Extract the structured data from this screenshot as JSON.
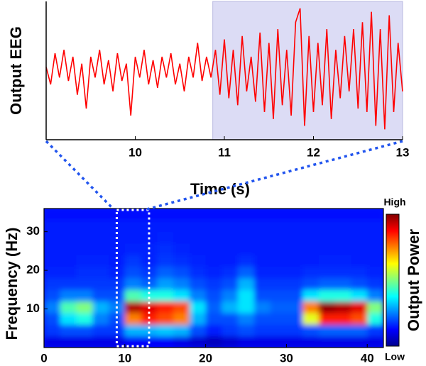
{
  "chart_data": [
    {
      "type": "line",
      "y_label": "Output EEG",
      "x_label": "Time (s)",
      "color": "#ff0000",
      "highlight_x": [
        10.87,
        13
      ],
      "highlight_color": "#dcdcf5",
      "xlim": [
        9,
        13
      ],
      "ylim": [
        -1,
        1
      ],
      "xticks": [
        10,
        11,
        12,
        13
      ],
      "x": [
        9.0,
        9.05,
        9.1,
        9.15,
        9.2,
        9.25,
        9.3,
        9.35,
        9.4,
        9.45,
        9.5,
        9.55,
        9.6,
        9.65,
        9.7,
        9.75,
        9.8,
        9.85,
        9.9,
        9.95,
        10.0,
        10.05,
        10.1,
        10.15,
        10.2,
        10.25,
        10.3,
        10.35,
        10.4,
        10.45,
        10.5,
        10.55,
        10.6,
        10.65,
        10.7,
        10.75,
        10.8,
        10.85,
        10.9,
        10.95,
        11.0,
        11.05,
        11.1,
        11.15,
        11.2,
        11.25,
        11.3,
        11.35,
        11.4,
        11.45,
        11.5,
        11.55,
        11.6,
        11.65,
        11.7,
        11.75,
        11.8,
        11.85,
        11.9,
        11.95,
        12.0,
        12.05,
        12.1,
        12.15,
        12.2,
        12.25,
        12.3,
        12.35,
        12.4,
        12.45,
        12.5,
        12.55,
        12.6,
        12.65,
        12.7,
        12.75,
        12.8,
        12.85,
        12.9,
        12.95,
        13.0
      ],
      "values": [
        0.05,
        -0.2,
        0.25,
        -0.1,
        0.3,
        -0.15,
        0.2,
        -0.35,
        0.1,
        -0.55,
        0.2,
        -0.1,
        0.3,
        -0.2,
        0.15,
        -0.3,
        0.25,
        -0.15,
        0.1,
        -0.65,
        0.2,
        -0.1,
        0.3,
        -0.2,
        0.15,
        -0.25,
        0.2,
        -0.1,
        0.25,
        -0.2,
        0.1,
        -0.3,
        0.2,
        -0.1,
        0.4,
        -0.15,
        0.2,
        -0.1,
        0.3,
        -0.35,
        0.45,
        -0.4,
        0.3,
        -0.5,
        0.5,
        -0.3,
        0.2,
        -0.45,
        0.55,
        -0.6,
        0.4,
        -0.7,
        0.6,
        -0.5,
        0.3,
        -0.65,
        0.7,
        0.9,
        -0.8,
        0.5,
        -0.6,
        0.4,
        -0.5,
        0.6,
        -0.7,
        0.3,
        -0.4,
        0.5,
        -0.3,
        0.6,
        -0.55,
        0.7,
        -0.6,
        0.85,
        -0.8,
        0.6,
        -0.85,
        0.8,
        -0.6,
        0.4,
        -0.3
      ]
    },
    {
      "type": "heatmap",
      "y_label": "Frequency (Hz)",
      "colormap": "jet",
      "box_x": [
        9,
        13
      ],
      "box_color": "#ffffff",
      "colorbar": {
        "label": "Output Power",
        "high": "High",
        "low": "Low"
      },
      "xlim": [
        0,
        42
      ],
      "ylim": [
        0,
        36
      ],
      "xticks": [
        0,
        10,
        20,
        30,
        40
      ],
      "yticks": [
        10,
        20,
        30
      ],
      "xbins": [
        0,
        2,
        4,
        6,
        8,
        10,
        12,
        14,
        16,
        18,
        20,
        22,
        24,
        26,
        28,
        30,
        32,
        34,
        36,
        38,
        40,
        42
      ],
      "ybins": [
        0,
        3,
        6,
        9,
        12,
        15,
        18,
        21,
        24,
        27,
        30,
        33,
        36
      ],
      "values": [
        [
          0.1,
          0.1,
          0.1,
          0.1,
          0.1,
          0.12,
          0.12,
          0.12,
          0.1,
          0.08,
          0.06,
          0.08,
          0.1,
          0.1,
          0.1,
          0.1,
          0.1,
          0.1,
          0.1,
          0.1,
          0.1
        ],
        [
          0.18,
          0.2,
          0.2,
          0.18,
          0.18,
          0.3,
          0.3,
          0.32,
          0.3,
          0.2,
          0.15,
          0.18,
          0.2,
          0.18,
          0.18,
          0.18,
          0.2,
          0.22,
          0.22,
          0.22,
          0.18
        ],
        [
          0.2,
          0.35,
          0.4,
          0.25,
          0.2,
          0.75,
          0.85,
          0.8,
          0.75,
          0.3,
          0.2,
          0.2,
          0.25,
          0.2,
          0.2,
          0.2,
          0.6,
          0.85,
          0.85,
          0.8,
          0.4
        ],
        [
          0.25,
          0.45,
          0.5,
          0.3,
          0.25,
          0.95,
          0.9,
          0.85,
          0.8,
          0.35,
          0.22,
          0.3,
          0.35,
          0.25,
          0.22,
          0.22,
          0.75,
          0.98,
          0.95,
          0.9,
          0.5
        ],
        [
          0.2,
          0.25,
          0.25,
          0.2,
          0.2,
          0.45,
          0.4,
          0.4,
          0.35,
          0.25,
          0.2,
          0.25,
          0.35,
          0.2,
          0.2,
          0.2,
          0.35,
          0.4,
          0.4,
          0.35,
          0.25
        ],
        [
          0.18,
          0.18,
          0.18,
          0.18,
          0.18,
          0.25,
          0.22,
          0.28,
          0.25,
          0.2,
          0.18,
          0.2,
          0.3,
          0.18,
          0.18,
          0.18,
          0.2,
          0.22,
          0.22,
          0.2,
          0.18
        ],
        [
          0.16,
          0.16,
          0.17,
          0.17,
          0.16,
          0.2,
          0.18,
          0.22,
          0.2,
          0.17,
          0.16,
          0.17,
          0.22,
          0.16,
          0.16,
          0.16,
          0.17,
          0.17,
          0.17,
          0.17,
          0.16
        ],
        [
          0.15,
          0.15,
          0.16,
          0.16,
          0.15,
          0.18,
          0.16,
          0.18,
          0.17,
          0.16,
          0.15,
          0.15,
          0.17,
          0.15,
          0.15,
          0.15,
          0.15,
          0.16,
          0.16,
          0.15,
          0.15
        ],
        [
          0.15,
          0.15,
          0.15,
          0.15,
          0.15,
          0.16,
          0.16,
          0.17,
          0.16,
          0.15,
          0.15,
          0.15,
          0.15,
          0.15,
          0.15,
          0.15,
          0.15,
          0.15,
          0.15,
          0.15,
          0.15
        ],
        [
          0.15,
          0.15,
          0.15,
          0.15,
          0.15,
          0.15,
          0.15,
          0.16,
          0.15,
          0.15,
          0.15,
          0.15,
          0.15,
          0.15,
          0.15,
          0.15,
          0.15,
          0.15,
          0.15,
          0.15,
          0.15
        ],
        [
          0.15,
          0.15,
          0.15,
          0.15,
          0.15,
          0.15,
          0.15,
          0.15,
          0.15,
          0.15,
          0.15,
          0.15,
          0.15,
          0.15,
          0.15,
          0.15,
          0.15,
          0.15,
          0.15,
          0.15,
          0.15
        ],
        [
          0.14,
          0.14,
          0.14,
          0.14,
          0.14,
          0.14,
          0.14,
          0.14,
          0.14,
          0.14,
          0.14,
          0.14,
          0.14,
          0.14,
          0.14,
          0.14,
          0.14,
          0.14,
          0.14,
          0.14,
          0.14
        ]
      ]
    }
  ]
}
